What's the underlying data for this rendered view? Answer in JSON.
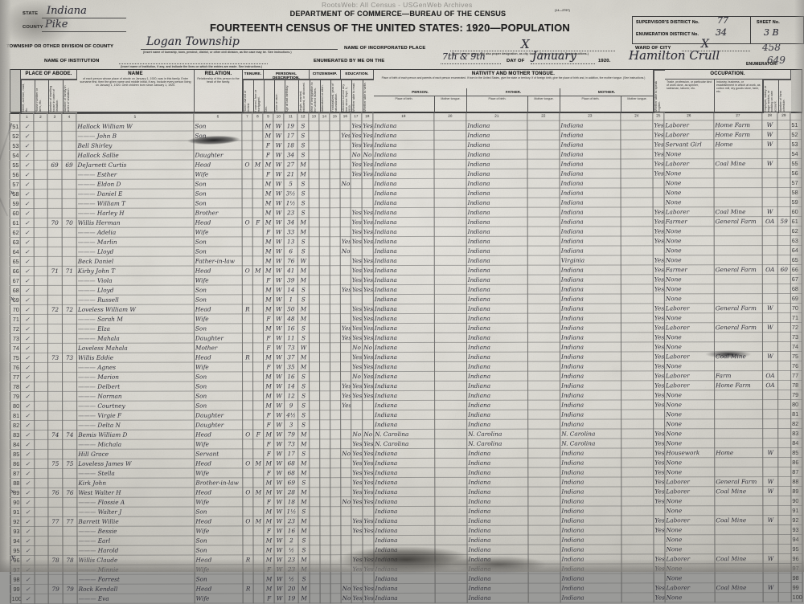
{
  "watermark": "RootsWeb: All Census - USGenWeb Archives",
  "header": {
    "form_no": "(14—2797)",
    "state_label": "STATE",
    "state_value": "Indiana",
    "county_label": "COUNTY",
    "county_value": "Pike",
    "dept_line": "DEPARTMENT OF COMMERCE—BUREAU OF THE CENSUS",
    "title": "FOURTEENTH CENSUS OF THE UNITED STATES: 1920—POPULATION",
    "township_label": "TOWNSHIP OR OTHER DIVISION OF COUNTY",
    "township_value": "Logan Township",
    "township_note": "(Insert name of township, town, precinct, district, or other civil division, as the case may be. See instructions.)",
    "incorporated_label": "NAME OF INCORPORATED PLACE",
    "incorporated_value": "X",
    "incorporated_note": "(Insert proper name and also proper designation, as city, town, village, or borough. See instructions.)",
    "ward_label": "WARD OF CITY",
    "ward_value": "X",
    "institution_label": "NAME OF INSTITUTION",
    "institution_note": "(Insert name of institution, if any, and indicate the lines on which the entries are made. See instructions.)",
    "enumerated_prefix": "ENUMERATED BY ME ON THE",
    "enumerated_day": "7th & 9th",
    "day_of_label": "DAY OF",
    "enumerated_month": "January",
    "enumerated_year": "1920.",
    "enumerator_signature": "Hamilton Crull",
    "enumerator_label": "ENUMERATOR.",
    "supervisor_label": "SUPERVISOR'S DISTRICT No.",
    "supervisor_value": "77",
    "enum_district_label": "ENUMERATION DISTRICT No.",
    "enum_district_value": "34",
    "sheet_label": "SHEET No.",
    "sheet_value": "3 B",
    "pencil_note_1": "458",
    "pencil_note_2": "649"
  },
  "table": {
    "groups": {
      "place_of_abode": "PLACE OF ABODE.",
      "name": "NAME",
      "relation": "RELATION.",
      "tenure": "TENURE.",
      "personal": "PERSONAL DESCRIPTION.",
      "citizenship": "CITIZENSHIP.",
      "education": "EDUCATION.",
      "nativity": "NATIVITY AND MOTHER TONGUE.",
      "occupation": "OCCUPATION."
    },
    "name_note": "of each person whose place of abode on January 1, 1920, was in this family. Enter surname first, then the given name and middle initial, if any. Include every person living on January 1, 1920. Omit children born since January 1, 1920.",
    "relation_note": "Relationship of this person to the head of the family.",
    "nativity_note": "Place of birth of each person and parents of each person enumerated. If born in the United States, give the state or territory. If of foreign birth, give the place of birth and, in addition, the mother tongue. (See instructions.)",
    "sub": {
      "person": "PERSON.",
      "father": "FATHER.",
      "mother": "MOTHER.",
      "pob": "Place of birth.",
      "tongue": "Mother tongue."
    },
    "cols": {
      "c1": "Street, avenue, road, etc.",
      "c2": "House number or farm, etc.",
      "c3": "Number of dwelling house in order of visitation.",
      "c4": "Number of family in order of visitation.",
      "c7": "Home owned or rented.",
      "c8": "If owned, free or mortgaged.",
      "c9": "Sex.",
      "c10": "Color or race.",
      "c11": "Age at last birthday.",
      "c12": "Single, married, widowed, or divorced.",
      "c13": "Year of immigration to the United States.",
      "c14": "Naturalized or alien.",
      "c15": "If naturalized, year of naturalization.",
      "c16": "Attended school any time since Sept. 1, 1919.",
      "c17": "Whether able to read.",
      "c18": "Whether able to write.",
      "c25": "Whether able to speak English.",
      "c26": "Trade, profession, or particular kind of work done, as spinner, salesman, laborer, etc.",
      "c27": "Industry, business, or establishment in which at work, as cotton mill, dry goods store, farm, etc.",
      "c28": "Employer, salary or wage worker, or working on own account.",
      "c29": "Number of farm schedule."
    },
    "col_numbers": [
      "1",
      "2",
      "3",
      "4",
      "5",
      "6",
      "7",
      "8",
      "9",
      "10",
      "11",
      "12",
      "13",
      "14",
      "15",
      "16",
      "17",
      "18",
      "19",
      "20",
      "21",
      "22",
      "23",
      "24",
      "25",
      "26",
      "27",
      "28",
      "29"
    ],
    "row_defaults": {
      "st": "✓",
      "pb": "Indiana",
      "fb": "Indiana",
      "mb": "Indiana"
    },
    "rows": [
      {
        "ln": "51",
        "name": "Hallock  William W",
        "rel": "Son",
        "sex": "M",
        "race": "W",
        "age": "19",
        "mar": "S",
        "e2": "Yes",
        "e3": "Yes",
        "eng": "Yes",
        "occ": "Laborer",
        "ind": "Home Farm",
        "emp": "W"
      },
      {
        "ln": "52",
        "name": "———  John B",
        "rel": "Son",
        "sex": "M",
        "race": "W",
        "age": "17",
        "mar": "S",
        "e1": "Yes",
        "e2": "Yes",
        "e3": "Yes",
        "eng": "Yes",
        "occ": "Laborer",
        "ind": "Home Farm",
        "emp": "W"
      },
      {
        "ln": "53",
        "name": "Bell  Shirley",
        "rel": "",
        "sex": "F",
        "race": "W",
        "age": "18",
        "mar": "S",
        "e2": "Yes",
        "e3": "Yes",
        "eng": "Yes",
        "occ": "Servant Girl",
        "ind": "Home",
        "emp": "W"
      },
      {
        "ln": "54",
        "name": "Hallock  Sallie",
        "rel": "Daughter",
        "sex": "F",
        "race": "W",
        "age": "34",
        "mar": "S",
        "e2": "No",
        "e3": "No",
        "eng": "Yes",
        "occ": "None"
      },
      {
        "ln": "55",
        "dw": "69",
        "fam": "69",
        "name": "DeJarnett  Curtis",
        "rel": "Head",
        "own": "O",
        "mort": "M",
        "sex": "M",
        "race": "W",
        "age": "27",
        "mar": "M",
        "e2": "Yes",
        "e3": "Yes",
        "eng": "Yes",
        "occ": "Laborer",
        "ind": "Coal Mine",
        "emp": "W"
      },
      {
        "ln": "56",
        "name": "———  Esther",
        "rel": "Wife",
        "sex": "F",
        "race": "W",
        "age": "21",
        "mar": "M",
        "e2": "Yes",
        "e3": "Yes",
        "eng": "Yes",
        "occ": "None"
      },
      {
        "ln": "57",
        "name": "———  Eldon D",
        "rel": "Son",
        "sex": "M",
        "race": "W",
        "age": "5",
        "mar": "S",
        "e1": "No",
        "occ": "None"
      },
      {
        "ln": "58",
        "mg": "x",
        "name": "———  Daniel E",
        "rel": "Son",
        "sex": "M",
        "race": "W",
        "age": "3½",
        "mar": "S",
        "occ": "None"
      },
      {
        "ln": "59",
        "name": "———  William T",
        "rel": "Son",
        "sex": "M",
        "race": "W",
        "age": "1½",
        "mar": "S",
        "occ": "None"
      },
      {
        "ln": "60",
        "name": "———  Harley H",
        "rel": "Brother",
        "sex": "M",
        "race": "W",
        "age": "23",
        "mar": "S",
        "e2": "Yes",
        "e3": "Yes",
        "eng": "Yes",
        "occ": "Laborer",
        "ind": "Coal Mine",
        "emp": "W"
      },
      {
        "ln": "61",
        "dw": "70",
        "fam": "70",
        "name": "Willis  Herman",
        "rel": "Head",
        "own": "O",
        "mort": "F",
        "sex": "M",
        "race": "W",
        "age": "34",
        "mar": "M",
        "e2": "Yes",
        "e3": "Yes",
        "eng": "Yes",
        "occ": "Farmer",
        "ind": "General Farm",
        "emp": "OA",
        "farm": "59"
      },
      {
        "ln": "62",
        "name": "———  Adelia",
        "rel": "Wife",
        "sex": "F",
        "race": "W",
        "age": "33",
        "mar": "M",
        "e2": "Yes",
        "e3": "Yes",
        "eng": "Yes",
        "occ": "None"
      },
      {
        "ln": "63",
        "name": "———  Marlin",
        "rel": "Son",
        "sex": "M",
        "race": "W",
        "age": "13",
        "mar": "S",
        "e1": "Yes",
        "e2": "Yes",
        "e3": "Yes",
        "eng": "Yes",
        "occ": "None"
      },
      {
        "ln": "64",
        "name": "———  Lloyd",
        "rel": "Son",
        "sex": "M",
        "race": "W",
        "age": "6",
        "mar": "S",
        "e1": "No",
        "occ": "None"
      },
      {
        "ln": "65",
        "name": "Beck  Daniel",
        "rel": "Father-in-law",
        "sex": "M",
        "race": "W",
        "age": "76",
        "mar": "W",
        "e2": "Yes",
        "e3": "Yes",
        "eng": "Yes",
        "occ": "None",
        "mb": "Virginia"
      },
      {
        "ln": "66",
        "dw": "71",
        "fam": "71",
        "name": "Kirby  John T",
        "rel": "Head",
        "own": "O",
        "mort": "M",
        "sex": "M",
        "race": "W",
        "age": "41",
        "mar": "M",
        "e2": "Yes",
        "e3": "Yes",
        "eng": "Yes",
        "occ": "Farmer",
        "ind": "General Farm",
        "emp": "OA",
        "farm": "60"
      },
      {
        "ln": "67",
        "name": "———  Viola",
        "rel": "Wife",
        "sex": "F",
        "race": "W",
        "age": "39",
        "mar": "M",
        "e2": "Yes",
        "e3": "Yes",
        "eng": "Yes",
        "occ": "None"
      },
      {
        "ln": "68",
        "name": "———  Lloyd",
        "rel": "Son",
        "sex": "M",
        "race": "W",
        "age": "14",
        "mar": "S",
        "e1": "Yes",
        "e2": "Yes",
        "e3": "Yes",
        "eng": "Yes",
        "occ": "None"
      },
      {
        "ln": "69",
        "mg": "x",
        "name": "———  Russell",
        "rel": "Son",
        "sex": "M",
        "race": "W",
        "age": "1",
        "mar": "S",
        "occ": "None"
      },
      {
        "ln": "70",
        "dw": "72",
        "fam": "72",
        "name": "Loveless  William W",
        "rel": "Head",
        "own": "R",
        "sex": "M",
        "race": "W",
        "age": "50",
        "mar": "M",
        "e2": "Yes",
        "e3": "Yes",
        "eng": "Yes",
        "occ": "Laborer",
        "ind": "General Farm",
        "emp": "W"
      },
      {
        "ln": "71",
        "name": "———  Sarah M",
        "rel": "Wife",
        "sex": "F",
        "race": "W",
        "age": "48",
        "mar": "M",
        "e2": "Yes",
        "e3": "Yes",
        "eng": "Yes",
        "occ": "None"
      },
      {
        "ln": "72",
        "name": "———  Elza",
        "rel": "Son",
        "sex": "M",
        "race": "W",
        "age": "16",
        "mar": "S",
        "e1": "Yes",
        "e2": "Yes",
        "e3": "Yes",
        "eng": "Yes",
        "occ": "Laborer",
        "ind": "General Farm",
        "emp": "W"
      },
      {
        "ln": "73",
        "name": "———  Mahala",
        "rel": "Daughter",
        "sex": "F",
        "race": "W",
        "age": "11",
        "mar": "S",
        "e1": "Yes",
        "e2": "Yes",
        "e3": "Yes",
        "eng": "Yes",
        "occ": "None"
      },
      {
        "ln": "74",
        "name": "Loveless  Mahala",
        "rel": "Mother",
        "sex": "F",
        "race": "W",
        "age": "73",
        "mar": "W",
        "e2": "No",
        "e3": "No",
        "eng": "Yes",
        "occ": "None"
      },
      {
        "ln": "75",
        "dw": "73",
        "fam": "73",
        "name": "Willis  Eddie",
        "rel": "Head",
        "own": "R",
        "sex": "M",
        "race": "W",
        "age": "37",
        "mar": "M",
        "e2": "Yes",
        "e3": "Yes",
        "eng": "Yes",
        "occ": "Laborer",
        "ind": "Coal Mine",
        "emp": "W"
      },
      {
        "ln": "76",
        "name": "———  Agnes",
        "rel": "Wife",
        "sex": "F",
        "race": "W",
        "age": "35",
        "mar": "M",
        "e2": "Yes",
        "e3": "Yes",
        "eng": "Yes",
        "occ": "None"
      },
      {
        "ln": "77",
        "name": "———  Marion",
        "rel": "Son",
        "sex": "M",
        "race": "W",
        "age": "16",
        "mar": "S",
        "e2": "No",
        "e3": "Yes",
        "eng": "Yes",
        "occ": "Laborer",
        "ind": "Farm",
        "emp": "OA"
      },
      {
        "ln": "78",
        "name": "———  Delbert",
        "rel": "Son",
        "sex": "M",
        "race": "W",
        "age": "14",
        "mar": "S",
        "e1": "Yes",
        "e2": "Yes",
        "e3": "Yes",
        "eng": "Yes",
        "occ": "Laborer",
        "ind": "Home Farm",
        "emp": "OA"
      },
      {
        "ln": "79",
        "name": "———  Norman",
        "rel": "Son",
        "sex": "M",
        "race": "W",
        "age": "12",
        "mar": "S",
        "e1": "Yes",
        "e2": "Yes",
        "e3": "Yes",
        "eng": "Yes",
        "occ": "None"
      },
      {
        "ln": "80",
        "name": "———  Courtney",
        "rel": "Son",
        "sex": "M",
        "race": "W",
        "age": "9",
        "mar": "S",
        "e1": "Yes",
        "eng": "Yes",
        "occ": "None"
      },
      {
        "ln": "81",
        "name": "———  Virgie F",
        "rel": "Daughter",
        "sex": "F",
        "race": "W",
        "age": "4½",
        "mar": "S",
        "occ": "None"
      },
      {
        "ln": "82",
        "name": "———  Delta N",
        "rel": "Daughter",
        "sex": "F",
        "race": "W",
        "age": "3",
        "mar": "S",
        "occ": "None"
      },
      {
        "ln": "83",
        "dw": "74",
        "fam": "74",
        "name": "Bemis  William D",
        "rel": "Head",
        "own": "O",
        "mort": "F",
        "sex": "M",
        "race": "W",
        "age": "79",
        "mar": "M",
        "e2": "No",
        "e3": "No",
        "eng": "Yes",
        "occ": "None",
        "pb": "N. Carolina",
        "fb": "N. Carolina",
        "mb": "N. Carolina"
      },
      {
        "ln": "84",
        "name": "———  Michala",
        "rel": "Wife",
        "sex": "F",
        "race": "W",
        "age": "73",
        "mar": "M",
        "e2": "Yes",
        "e3": "Yes",
        "eng": "Yes",
        "occ": "None",
        "pb": "N. Carolina",
        "fb": "N. Carolina",
        "mb": "N. Carolina"
      },
      {
        "ln": "85",
        "name": "Hill  Grace",
        "rel": "Servant",
        "sex": "F",
        "race": "W",
        "age": "17",
        "mar": "S",
        "e1": "No",
        "e2": "Yes",
        "e3": "Yes",
        "eng": "Yes",
        "occ": "Housework",
        "ind": "Home",
        "emp": "W"
      },
      {
        "ln": "86",
        "dw": "75",
        "fam": "75",
        "name": "Loveless  James W",
        "rel": "Head",
        "own": "O",
        "mort": "M",
        "sex": "M",
        "race": "W",
        "age": "68",
        "mar": "M",
        "e2": "Yes",
        "e3": "Yes",
        "eng": "Yes",
        "occ": "None"
      },
      {
        "ln": "87",
        "name": "———  Stella",
        "rel": "Wife",
        "sex": "F",
        "race": "W",
        "age": "68",
        "mar": "M",
        "e2": "Yes",
        "e3": "Yes",
        "eng": "Yes",
        "occ": "None"
      },
      {
        "ln": "88",
        "name": "Kirk  John",
        "rel": "Brother-in-law",
        "sex": "M",
        "race": "W",
        "age": "69",
        "mar": "S",
        "e2": "Yes",
        "e3": "Yes",
        "eng": "Yes",
        "occ": "Laborer",
        "ind": "General Farm",
        "emp": "W"
      },
      {
        "ln": "89",
        "mg": "x",
        "dw": "76",
        "fam": "76",
        "name": "West  Walter H",
        "rel": "Head",
        "own": "O",
        "mort": "M",
        "sex": "M",
        "race": "W",
        "age": "28",
        "mar": "M",
        "e2": "Yes",
        "e3": "Yes",
        "eng": "Yes",
        "occ": "Laborer",
        "ind": "Coal Mine",
        "emp": "W"
      },
      {
        "ln": "90",
        "name": "———  Flossie A",
        "rel": "Wife",
        "sex": "F",
        "race": "W",
        "age": "18",
        "mar": "M",
        "e1": "No",
        "e2": "Yes",
        "e3": "Yes",
        "eng": "Yes",
        "occ": "None"
      },
      {
        "ln": "91",
        "name": "———  Walter J",
        "rel": "Son",
        "sex": "M",
        "race": "W",
        "age": "1½",
        "mar": "S",
        "occ": "None"
      },
      {
        "ln": "92",
        "dw": "77",
        "fam": "77",
        "name": "Barrett  Willie",
        "rel": "Head",
        "own": "O",
        "mort": "M",
        "sex": "M",
        "race": "W",
        "age": "23",
        "mar": "M",
        "e2": "Yes",
        "e3": "Yes",
        "eng": "Yes",
        "occ": "Laborer",
        "ind": "Coal Mine",
        "emp": "W"
      },
      {
        "ln": "93",
        "name": "———  Bessie",
        "rel": "Wife",
        "sex": "F",
        "race": "W",
        "age": "16",
        "mar": "M",
        "e2": "Yes",
        "e3": "Yes",
        "eng": "Yes",
        "occ": "None"
      },
      {
        "ln": "94",
        "name": "———  Earl",
        "rel": "Son",
        "sex": "M",
        "race": "W",
        "age": "2",
        "mar": "S",
        "occ": "None"
      },
      {
        "ln": "95",
        "name": "———  Harold",
        "rel": "Son",
        "sex": "M",
        "race": "W",
        "age": "½",
        "mar": "S",
        "occ": "None"
      },
      {
        "ln": "96",
        "mg": "X",
        "dw": "78",
        "fam": "78",
        "name": "Willis  Claude",
        "rel": "Head",
        "own": "R",
        "sex": "M",
        "race": "W",
        "age": "23",
        "mar": "M",
        "e2": "Yes",
        "e3": "Yes",
        "eng": "Yes",
        "occ": "Laborer",
        "ind": "Coal Mine",
        "emp": "W"
      },
      {
        "ln": "97",
        "name": "———  Minnie",
        "rel": "Wife",
        "sex": "F",
        "race": "W",
        "age": "23",
        "mar": "M",
        "e2": "Yes",
        "e3": "Yes",
        "eng": "Yes",
        "occ": "None"
      },
      {
        "ln": "98",
        "name": "———  Forrest",
        "rel": "Son",
        "sex": "M",
        "race": "W",
        "age": "½",
        "mar": "S",
        "occ": "None"
      },
      {
        "ln": "99",
        "dw": "79",
        "fam": "79",
        "name": "Rock  Kendall",
        "rel": "Head",
        "own": "R",
        "sex": "M",
        "race": "W",
        "age": "20",
        "mar": "M",
        "e1": "No",
        "e2": "Yes",
        "e3": "Yes",
        "eng": "Yes",
        "occ": "Laborer",
        "ind": "Coal Mine",
        "emp": "W"
      },
      {
        "ln": "100",
        "name": "———  Eva",
        "rel": "Wife",
        "sex": "F",
        "race": "W",
        "age": "19",
        "mar": "M",
        "e1": "No",
        "e2": "Yes",
        "e3": "Yes",
        "eng": "Yes",
        "occ": "None"
      }
    ]
  }
}
